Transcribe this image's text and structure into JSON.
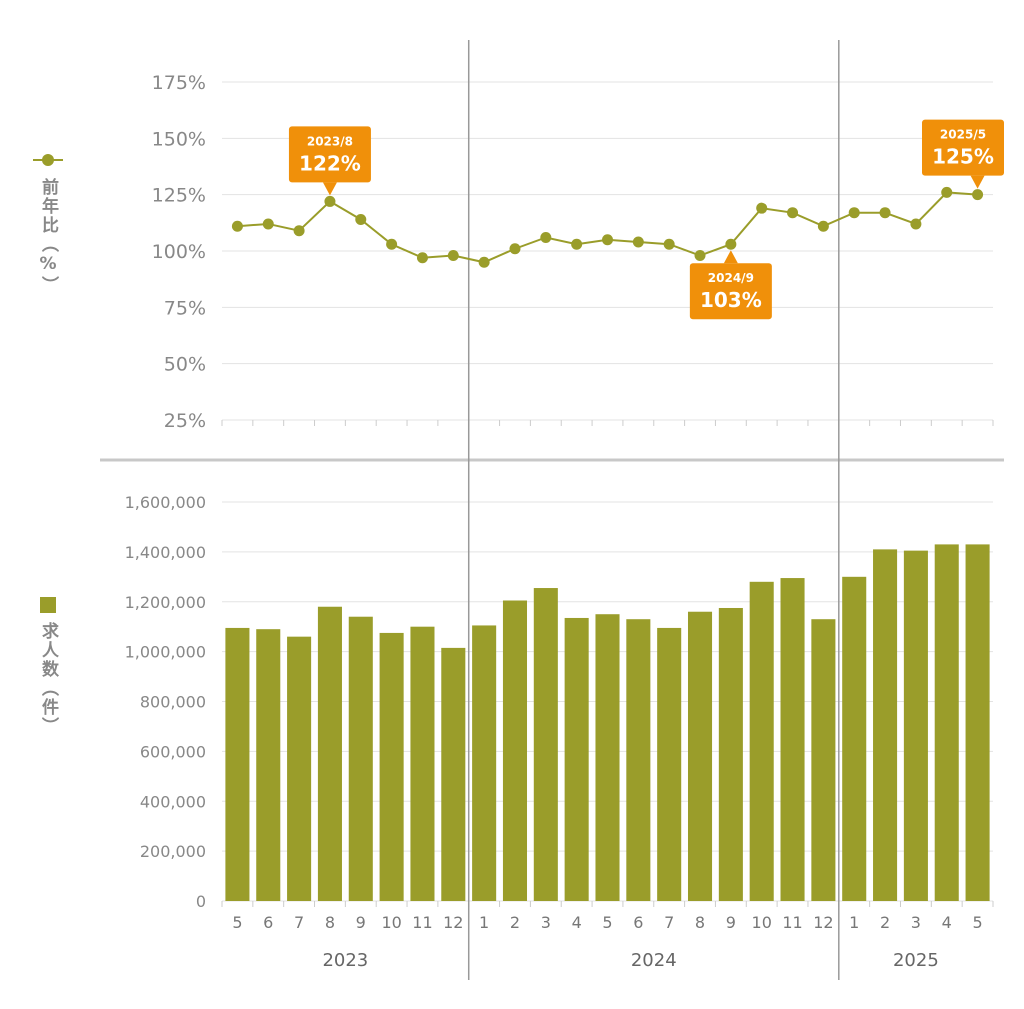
{
  "colors": {
    "series": "#9a9d2a",
    "callout": "#f0900a",
    "grid": "#e3e3e3",
    "axis_text": "#888888",
    "divider": "#999999",
    "panel_separator": "#c8c8c8"
  },
  "legend": {
    "line_label": "前年比（%）",
    "bar_label": "求人数（件）"
  },
  "chart_data": [
    {
      "type": "line",
      "ylabel": "前年比（%）",
      "y_ticks": [
        "175%",
        "150%",
        "125%",
        "100%",
        "75%",
        "50%",
        "25%"
      ],
      "ylim": [
        25,
        175
      ],
      "x": [
        "2023-05",
        "2023-06",
        "2023-07",
        "2023-08",
        "2023-09",
        "2023-10",
        "2023-11",
        "2023-12",
        "2024-01",
        "2024-02",
        "2024-03",
        "2024-04",
        "2024-05",
        "2024-06",
        "2024-07",
        "2024-08",
        "2024-09",
        "2024-10",
        "2024-11",
        "2024-12",
        "2025-01",
        "2025-02",
        "2025-03",
        "2025-04",
        "2025-05"
      ],
      "values": [
        111,
        112,
        109,
        122,
        114,
        103,
        97,
        98,
        95,
        101,
        106,
        103,
        105,
        104,
        103,
        98,
        103,
        119,
        117,
        111,
        117,
        117,
        112,
        126,
        125
      ],
      "grid": true,
      "annotations": [
        {
          "date": "2023/8",
          "value": "122%",
          "index": 3
        },
        {
          "date": "2024/9",
          "value": "103%",
          "index": 16
        },
        {
          "date": "2025/5",
          "value": "125%",
          "index": 24
        }
      ]
    },
    {
      "type": "bar",
      "ylabel": "求人数（件）",
      "y_ticks": [
        "1,600,000",
        "1,400,000",
        "1,200,000",
        "1,000,000",
        "800,000",
        "600,000",
        "400,000",
        "200,000",
        "0"
      ],
      "ylim": [
        0,
        1600000
      ],
      "month_labels": [
        "5",
        "6",
        "7",
        "8",
        "9",
        "10",
        "11",
        "12",
        "1",
        "2",
        "3",
        "4",
        "5",
        "6",
        "7",
        "8",
        "9",
        "10",
        "11",
        "12",
        "1",
        "2",
        "3",
        "4",
        "5"
      ],
      "year_labels": [
        "2023",
        "2024",
        "2025"
      ],
      "values": [
        1095000,
        1090000,
        1060000,
        1180000,
        1140000,
        1075000,
        1100000,
        1015000,
        1105000,
        1205000,
        1255000,
        1135000,
        1150000,
        1130000,
        1095000,
        1160000,
        1175000,
        1280000,
        1295000,
        1130000,
        1300000,
        1410000,
        1405000,
        1430000,
        1430000
      ],
      "grid": true
    }
  ]
}
